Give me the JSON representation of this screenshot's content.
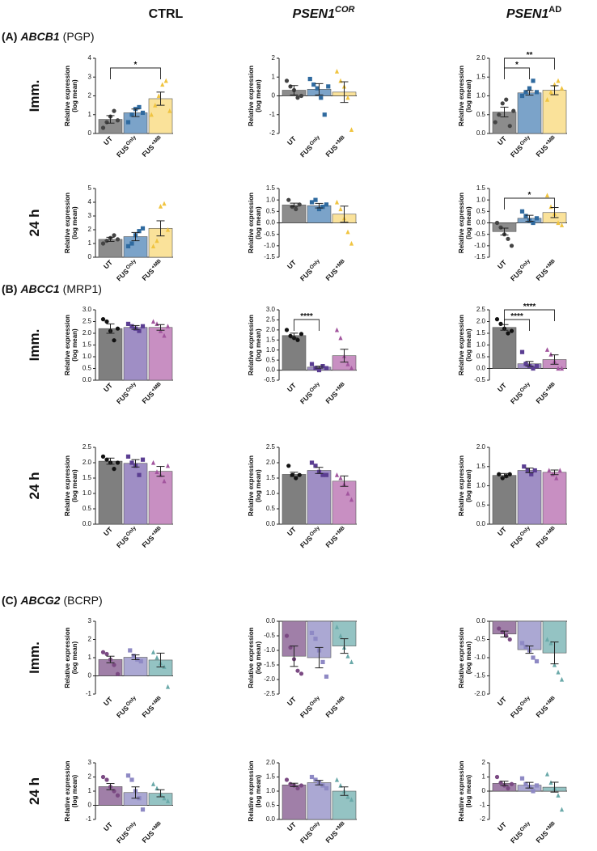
{
  "columns": [
    {
      "name": "CTRL"
    },
    {
      "name": "PSEN1",
      "sup": "COR"
    },
    {
      "name": "PSEN1",
      "sup": "AD"
    }
  ],
  "sections": [
    {
      "letter": "(A)",
      "gene": "ABCB1",
      "protein": "(PGP)"
    },
    {
      "letter": "(B)",
      "gene": "ABCC1",
      "protein": "(MRP1)"
    },
    {
      "letter": "(C)",
      "gene": "ABCG2",
      "protein": "(BCRP)"
    }
  ],
  "row_labels": [
    "Imm.",
    "24 h"
  ],
  "y_label": [
    "Relative expression",
    "(log mean)"
  ],
  "markers": [
    "circle",
    "square",
    "triangle"
  ],
  "chart_data": [
    {
      "type": "bar",
      "categories": [
        "UT",
        "FUS Only",
        "FUS +MB"
      ],
      "colors": [
        "#8c8c8c",
        "#7ba3c9",
        "#fae29a"
      ],
      "point_colors": [
        "#444444",
        "#2f6a9f",
        "#f0c440"
      ],
      "ylim": [
        0,
        4
      ],
      "yticks": [
        0,
        1,
        2,
        3,
        4
      ],
      "values": [
        0.75,
        1.1,
        1.85
      ],
      "errors": [
        0.2,
        0.2,
        0.35
      ],
      "points": [
        [
          0.3,
          0.6,
          0.9,
          1.2,
          0.7
        ],
        [
          0.6,
          1.0,
          1.3,
          1.4,
          1.1
        ],
        [
          1.0,
          1.5,
          2.0,
          2.6,
          2.8,
          1.2
        ]
      ],
      "annotations": [
        {
          "label": "*",
          "from": 0,
          "to": 2
        }
      ]
    },
    {
      "type": "bar",
      "categories": [
        "UT",
        "FUS Only",
        "FUS +MB"
      ],
      "colors": [
        "#8c8c8c",
        "#7ba3c9",
        "#fae29a"
      ],
      "point_colors": [
        "#444444",
        "#2f6a9f",
        "#f0c440"
      ],
      "ylim": [
        -2,
        2
      ],
      "yticks": [
        -2,
        -1,
        0,
        1,
        2
      ],
      "values": [
        0.3,
        0.35,
        0.2
      ],
      "errors": [
        0.25,
        0.3,
        0.55
      ],
      "points": [
        [
          0.8,
          0.5,
          0.3,
          -0.1,
          0.0
        ],
        [
          0.9,
          0.6,
          0.4,
          -0.1,
          -1.0,
          0.5
        ],
        [
          1.3,
          0.8,
          0.5,
          -0.1,
          -1.8
        ]
      ],
      "annotations": []
    },
    {
      "type": "bar",
      "categories": [
        "UT",
        "FUS Only",
        "FUS +MB"
      ],
      "colors": [
        "#8c8c8c",
        "#7ba3c9",
        "#fae29a"
      ],
      "point_colors": [
        "#444444",
        "#2f6a9f",
        "#f0c440"
      ],
      "ylim": [
        0,
        2
      ],
      "yticks": [
        {
          "value": 0,
          "label": "0.0"
        },
        0.5,
        {
          "value": 1,
          "label": "1.0"
        },
        1.5,
        {
          "value": 2,
          "label": "2.0"
        }
      ],
      "values": [
        0.57,
        1.08,
        1.15
      ],
      "errors": [
        0.13,
        0.06,
        0.12
      ],
      "points": [
        [
          0.3,
          0.5,
          0.8,
          0.9,
          0.2,
          0.6
        ],
        [
          1.0,
          1.1,
          1.2,
          1.4,
          1.1
        ],
        [
          0.9,
          1.1,
          1.3,
          1.4,
          1.2
        ]
      ],
      "annotations": [
        {
          "label": "*",
          "from": 0,
          "to": 1
        },
        {
          "label": "**",
          "from": 0,
          "to": 2
        }
      ]
    },
    {
      "type": "bar",
      "categories": [
        "UT",
        "FUS Only",
        "FUS +MB"
      ],
      "colors": [
        "#8c8c8c",
        "#7ba3c9",
        "#fae29a"
      ],
      "point_colors": [
        "#444444",
        "#2f6a9f",
        "#f0c440"
      ],
      "ylim": [
        0,
        5
      ],
      "yticks": [
        0,
        1,
        2,
        3,
        4,
        5
      ],
      "values": [
        1.3,
        1.5,
        2.1
      ],
      "errors": [
        0.15,
        0.3,
        0.55
      ],
      "points": [
        [
          1.0,
          1.2,
          1.4,
          1.6,
          1.3
        ],
        [
          0.8,
          1.0,
          1.6,
          1.9,
          2.1
        ],
        [
          0.8,
          1.2,
          3.7,
          3.9,
          2.0
        ]
      ],
      "annotations": []
    },
    {
      "type": "bar",
      "categories": [
        "UT",
        "FUS Only",
        "FUS +MB"
      ],
      "colors": [
        "#8c8c8c",
        "#7ba3c9",
        "#fae29a"
      ],
      "point_colors": [
        "#444444",
        "#2f6a9f",
        "#f0c440"
      ],
      "ylim": [
        -1.5,
        1.5
      ],
      "yticks": [
        -1.5,
        {
          "value": -1,
          "label": "-1.0"
        },
        -0.5,
        {
          "value": 0,
          "label": "0.0"
        },
        0.5,
        {
          "value": 1,
          "label": "1.0"
        },
        1.5
      ],
      "values": [
        0.78,
        0.75,
        0.38
      ],
      "errors": [
        0.08,
        0.1,
        0.35
      ],
      "points": [
        [
          1.0,
          0.7,
          0.6,
          0.8
        ],
        [
          0.9,
          1.0,
          0.6,
          0.7,
          0.8
        ],
        [
          0.9,
          0.6,
          0.2,
          -0.4,
          -0.9
        ]
      ],
      "annotations": []
    },
    {
      "type": "bar",
      "categories": [
        "UT",
        "FUS Only",
        "FUS +MB"
      ],
      "colors": [
        "#8c8c8c",
        "#7ba3c9",
        "#fae29a"
      ],
      "point_colors": [
        "#444444",
        "#2f6a9f",
        "#f0c440"
      ],
      "ylim": [
        -1.5,
        1.5
      ],
      "yticks": [
        -1.5,
        {
          "value": -1,
          "label": "-1.0"
        },
        -0.5,
        {
          "value": 0,
          "label": "0.0"
        },
        0.5,
        {
          "value": 1,
          "label": "1.0"
        },
        1.5
      ],
      "values": [
        -0.38,
        0.2,
        0.45
      ],
      "errors": [
        0.15,
        0.13,
        0.22
      ],
      "points": [
        [
          0.0,
          -0.2,
          -0.5,
          -0.7,
          -1.0
        ],
        [
          0.5,
          0.3,
          0.1,
          0.0,
          0.2
        ],
        [
          1.2,
          0.7,
          0.4,
          0.0,
          -0.1
        ]
      ],
      "annotations": [
        {
          "label": "*",
          "from": 0,
          "to": 2
        }
      ]
    },
    {
      "type": "bar",
      "categories": [
        "UT",
        "FUS Only",
        "FUS +MB"
      ],
      "colors": [
        "#7f7f7f",
        "#9f8ec5",
        "#c88fc2"
      ],
      "point_colors": [
        "#111111",
        "#5b3e92",
        "#a2559e"
      ],
      "ylim": [
        0,
        3
      ],
      "yticks": [
        {
          "value": 0,
          "label": "0.0"
        },
        0.5,
        {
          "value": 1,
          "label": "1.0"
        },
        1.5,
        {
          "value": 2,
          "label": "2.0"
        },
        2.5,
        {
          "value": 3,
          "label": "3.0"
        }
      ],
      "values": [
        2.2,
        2.25,
        2.25
      ],
      "errors": [
        0.2,
        0.08,
        0.12
      ],
      "points": [
        [
          2.6,
          2.5,
          2.1,
          1.7,
          2.2
        ],
        [
          2.4,
          2.3,
          2.2,
          2.1,
          2.3
        ],
        [
          2.5,
          2.4,
          2.1,
          1.9,
          2.3
        ]
      ],
      "annotations": []
    },
    {
      "type": "bar",
      "categories": [
        "UT",
        "FUS Only",
        "FUS +MB"
      ],
      "colors": [
        "#7f7f7f",
        "#9f8ec5",
        "#c88fc2"
      ],
      "point_colors": [
        "#111111",
        "#5b3e92",
        "#a2559e"
      ],
      "ylim": [
        -0.5,
        3
      ],
      "yticks": [
        -0.5,
        {
          "value": 0,
          "label": "0.0"
        },
        0.5,
        {
          "value": 1,
          "label": "1.0"
        },
        1.5,
        {
          "value": 2,
          "label": "2.0"
        },
        2.5,
        {
          "value": 3,
          "label": "3.0"
        }
      ],
      "values": [
        1.72,
        0.15,
        0.72
      ],
      "errors": [
        0.12,
        0.05,
        0.32
      ],
      "points": [
        [
          2.0,
          1.7,
          1.6,
          1.5,
          1.8
        ],
        [
          0.3,
          0.1,
          0.0,
          0.2,
          0.1
        ],
        [
          2.0,
          1.6,
          0.7,
          0.3,
          0.1
        ]
      ],
      "annotations": [
        {
          "label": "****",
          "from": 0,
          "to": 1
        }
      ]
    },
    {
      "type": "bar",
      "categories": [
        "UT",
        "FUS Only",
        "FUS +MB"
      ],
      "colors": [
        "#7f7f7f",
        "#9f8ec5",
        "#c88fc2"
      ],
      "point_colors": [
        "#111111",
        "#5b3e92",
        "#a2559e"
      ],
      "ylim": [
        -0.5,
        2.5
      ],
      "yticks": [
        -0.5,
        {
          "value": 0,
          "label": "0.0"
        },
        0.5,
        {
          "value": 1,
          "label": "1.0"
        },
        1.5,
        {
          "value": 2,
          "label": "2.0"
        },
        2.5
      ],
      "values": [
        1.75,
        0.2,
        0.38
      ],
      "errors": [
        0.12,
        0.1,
        0.2
      ],
      "points": [
        [
          2.1,
          1.9,
          1.7,
          1.5,
          1.6
        ],
        [
          0.7,
          0.2,
          0.1,
          0.0,
          0.1
        ],
        [
          0.8,
          0.6,
          0.3,
          0.0,
          0.0
        ]
      ],
      "annotations": [
        {
          "label": "****",
          "from": 0,
          "to": 1
        },
        {
          "label": "****",
          "from": 0,
          "to": 2
        }
      ]
    },
    {
      "type": "bar",
      "categories": [
        "UT",
        "FUS Only",
        "FUS +MB"
      ],
      "colors": [
        "#7f7f7f",
        "#9f8ec5",
        "#c88fc2"
      ],
      "point_colors": [
        "#111111",
        "#5b3e92",
        "#a2559e"
      ],
      "ylim": [
        0,
        2.5
      ],
      "yticks": [
        {
          "value": 0,
          "label": "0.0"
        },
        0.5,
        {
          "value": 1,
          "label": "1.0"
        },
        1.5,
        {
          "value": 2,
          "label": "2.0"
        },
        2.5
      ],
      "values": [
        2.05,
        1.98,
        1.72
      ],
      "errors": [
        0.1,
        0.12,
        0.16
      ],
      "points": [
        [
          2.2,
          2.1,
          2.0,
          1.8,
          2.0
        ],
        [
          2.2,
          2.0,
          1.9,
          1.6,
          2.1
        ],
        [
          2.0,
          1.7,
          1.6,
          1.4,
          1.9
        ]
      ],
      "annotations": []
    },
    {
      "type": "bar",
      "categories": [
        "UT",
        "FUS Only",
        "FUS +MB"
      ],
      "colors": [
        "#7f7f7f",
        "#9f8ec5",
        "#c88fc2"
      ],
      "point_colors": [
        "#111111",
        "#5b3e92",
        "#a2559e"
      ],
      "ylim": [
        0,
        2.5
      ],
      "yticks": [
        {
          "value": 0,
          "label": "0.0"
        },
        0.5,
        {
          "value": 1,
          "label": "1.0"
        },
        1.5,
        {
          "value": 2,
          "label": "2.0"
        },
        2.5
      ],
      "values": [
        1.62,
        1.75,
        1.4
      ],
      "errors": [
        0.07,
        0.1,
        0.17
      ],
      "points": [
        [
          1.9,
          1.6,
          1.5,
          1.6
        ],
        [
          2.0,
          1.9,
          1.7,
          1.6,
          1.6
        ],
        [
          1.6,
          1.5,
          1.3,
          1.0,
          0.8
        ]
      ],
      "annotations": []
    },
    {
      "type": "bar",
      "categories": [
        "UT",
        "FUS Only",
        "FUS +MB"
      ],
      "colors": [
        "#7f7f7f",
        "#9f8ec5",
        "#c88fc2"
      ],
      "point_colors": [
        "#111111",
        "#5b3e92",
        "#a2559e"
      ],
      "ylim": [
        0,
        2
      ],
      "yticks": [
        {
          "value": 0,
          "label": "0.0"
        },
        0.5,
        {
          "value": 1,
          "label": "1.0"
        },
        1.5,
        {
          "value": 2,
          "label": "2.0"
        }
      ],
      "values": [
        1.27,
        1.4,
        1.35
      ],
      "errors": [
        0.05,
        0.06,
        0.06
      ],
      "points": [
        [
          1.3,
          1.2,
          1.25,
          1.3
        ],
        [
          1.5,
          1.4,
          1.3,
          1.4
        ],
        [
          1.4,
          1.3,
          1.2,
          1.4
        ]
      ],
      "annotations": []
    },
    {
      "type": "bar",
      "categories": [
        "UT",
        "FUS Only",
        "FUS +MB"
      ],
      "colors": [
        "#a07fa8",
        "#aba8d3",
        "#94c3c3"
      ],
      "point_colors": [
        "#7b4a83",
        "#8e89c4",
        "#6aa9a9"
      ],
      "ylim": [
        -1,
        3
      ],
      "yticks": [
        -1,
        0,
        1,
        2,
        3
      ],
      "values": [
        0.9,
        1.02,
        0.87
      ],
      "errors": [
        0.18,
        0.13,
        0.38
      ],
      "points": [
        [
          1.3,
          1.2,
          0.9,
          0.6,
          0.1
        ],
        [
          1.4,
          1.1,
          0.9,
          0.8
        ],
        [
          1.3,
          1.0,
          0.7,
          0.5,
          -0.6
        ]
      ],
      "annotations": []
    },
    {
      "type": "bar",
      "categories": [
        "UT",
        "FUS Only",
        "FUS +MB"
      ],
      "colors": [
        "#a07fa8",
        "#aba8d3",
        "#94c3c3"
      ],
      "point_colors": [
        "#7b4a83",
        "#8e89c4",
        "#6aa9a9"
      ],
      "ylim": [
        -2.5,
        0
      ],
      "yticks": [
        -2.5,
        {
          "value": -2,
          "label": "-2.0"
        },
        -1.5,
        {
          "value": -1,
          "label": "-1.0"
        },
        -0.5,
        {
          "value": 0,
          "label": "0.0"
        }
      ],
      "values": [
        -1.2,
        -1.25,
        -0.85
      ],
      "errors": [
        0.35,
        0.35,
        0.25
      ],
      "points": [
        [
          -0.5,
          -0.9,
          -1.3,
          -1.7,
          -1.8
        ],
        [
          -0.4,
          -0.6,
          -1.0,
          -1.4,
          -1.9
        ],
        [
          -0.2,
          -0.5,
          -0.9,
          -1.2,
          -1.4
        ]
      ],
      "annotations": []
    },
    {
      "type": "bar",
      "categories": [
        "UT",
        "FUS Only",
        "FUS +MB"
      ],
      "colors": [
        "#a07fa8",
        "#aba8d3",
        "#94c3c3"
      ],
      "point_colors": [
        "#7b4a83",
        "#8e89c4",
        "#6aa9a9"
      ],
      "ylim": [
        -2,
        0
      ],
      "yticks": [
        {
          "value": -2,
          "label": "-2.0"
        },
        -1.5,
        {
          "value": -1,
          "label": "-1.0"
        },
        -0.5,
        {
          "value": 0,
          "label": "0.0"
        }
      ],
      "values": [
        -0.35,
        -0.78,
        -0.87
      ],
      "errors": [
        0.08,
        0.1,
        0.3
      ],
      "points": [
        [
          -0.2,
          -0.3,
          -0.4,
          -0.5
        ],
        [
          -0.6,
          -0.7,
          -0.8,
          -1.0,
          -1.1
        ],
        [
          -0.5,
          -0.6,
          -1.2,
          -1.4,
          -1.6
        ]
      ],
      "annotations": []
    },
    {
      "type": "bar",
      "categories": [
        "UT",
        "FUS Only",
        "FUS +MB"
      ],
      "colors": [
        "#a07fa8",
        "#aba8d3",
        "#94c3c3"
      ],
      "point_colors": [
        "#7b4a83",
        "#8e89c4",
        "#6aa9a9"
      ],
      "ylim": [
        -1,
        3
      ],
      "yticks": [
        -1,
        0,
        1,
        2,
        3
      ],
      "values": [
        1.32,
        0.9,
        0.85
      ],
      "errors": [
        0.22,
        0.4,
        0.25
      ],
      "points": [
        [
          2.0,
          1.8,
          1.3,
          1.0,
          0.7
        ],
        [
          2.1,
          1.8,
          1.0,
          0.5,
          -0.3
        ],
        [
          1.5,
          1.2,
          0.8,
          0.5,
          0.3
        ]
      ],
      "annotations": []
    },
    {
      "type": "bar",
      "categories": [
        "UT",
        "FUS Only",
        "FUS +MB"
      ],
      "colors": [
        "#a07fa8",
        "#aba8d3",
        "#94c3c3"
      ],
      "point_colors": [
        "#7b4a83",
        "#8e89c4",
        "#6aa9a9"
      ],
      "ylim": [
        0,
        2
      ],
      "yticks": [
        {
          "value": 0,
          "label": "0.0"
        },
        0.5,
        {
          "value": 1,
          "label": "1.0"
        },
        1.5,
        {
          "value": 2,
          "label": "2.0"
        }
      ],
      "values": [
        1.22,
        1.3,
        1.0
      ],
      "errors": [
        0.06,
        0.08,
        0.15
      ],
      "points": [
        [
          1.4,
          1.25,
          1.2,
          1.1,
          1.2
        ],
        [
          1.5,
          1.4,
          1.3,
          1.2,
          1.1
        ],
        [
          1.4,
          1.2,
          1.0,
          0.8,
          0.7
        ]
      ],
      "annotations": []
    },
    {
      "type": "bar",
      "categories": [
        "UT",
        "FUS Only",
        "FUS +MB"
      ],
      "colors": [
        "#a07fa8",
        "#aba8d3",
        "#94c3c3"
      ],
      "point_colors": [
        "#7b4a83",
        "#8e89c4",
        "#6aa9a9"
      ],
      "ylim": [
        -2,
        2
      ],
      "yticks": [
        -2,
        -1,
        0,
        1,
        2
      ],
      "values": [
        0.55,
        0.42,
        0.28
      ],
      "errors": [
        0.15,
        0.2,
        0.35
      ],
      "points": [
        [
          1.0,
          0.6,
          0.4,
          0.2,
          0.5
        ],
        [
          0.9,
          0.5,
          0.3,
          0.0,
          0.4
        ],
        [
          1.2,
          0.6,
          0.2,
          -0.3,
          -1.3
        ]
      ],
      "annotations": []
    }
  ]
}
